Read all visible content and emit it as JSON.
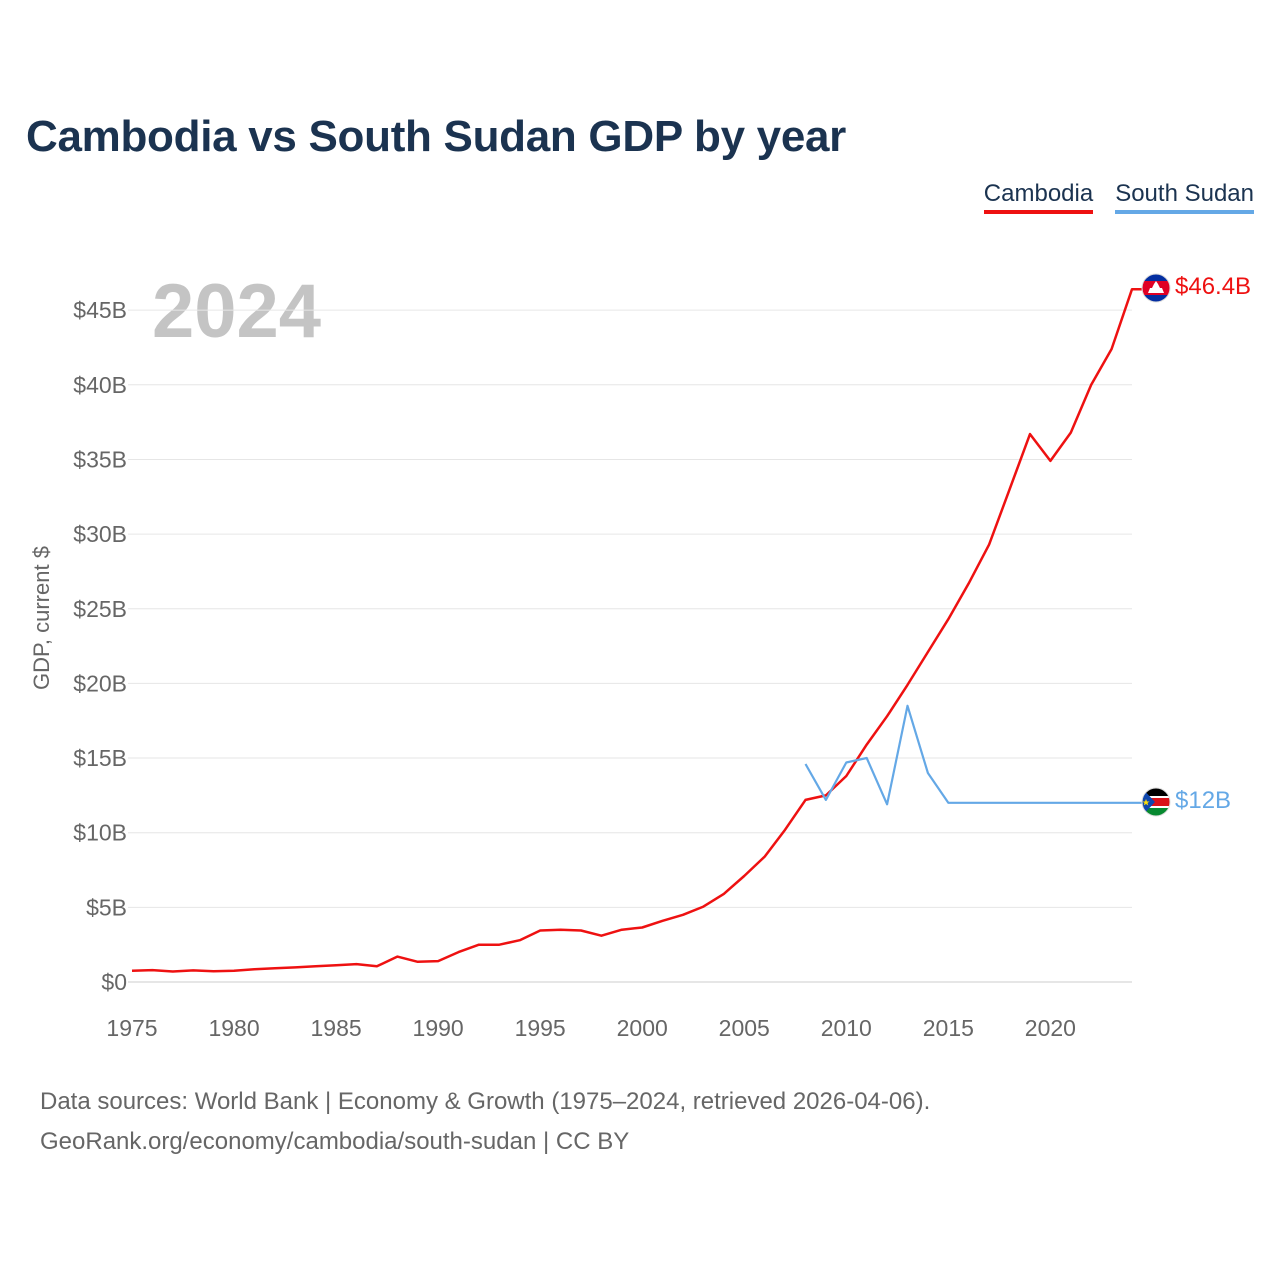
{
  "title": "Cambodia vs South Sudan GDP by year",
  "year_label": "2024",
  "footer": {
    "line1": "Data sources: World Bank | Economy & Growth (1975–2024, retrieved 2026-04-06).",
    "line2": "GeoRank.org/economy/cambodia/south-sudan | CC BY"
  },
  "chart_data": {
    "type": "line",
    "title": "Cambodia vs South Sudan GDP by year",
    "xlabel": "",
    "ylabel": "GDP, current $",
    "xlim": [
      1975,
      2024
    ],
    "ylim": [
      0,
      46.4
    ],
    "grid": true,
    "legend_position": "top-right",
    "y_ticks": [
      {
        "value": 0,
        "label": "$0"
      },
      {
        "value": 5,
        "label": "$5B"
      },
      {
        "value": 10,
        "label": "$10B"
      },
      {
        "value": 15,
        "label": "$15B"
      },
      {
        "value": 20,
        "label": "$20B"
      },
      {
        "value": 25,
        "label": "$25B"
      },
      {
        "value": 30,
        "label": "$30B"
      },
      {
        "value": 35,
        "label": "$35B"
      },
      {
        "value": 40,
        "label": "$40B"
      },
      {
        "value": 45,
        "label": "$45B"
      }
    ],
    "x_ticks": [
      1975,
      1980,
      1985,
      1990,
      1995,
      2000,
      2005,
      2010,
      2015,
      2020
    ],
    "series": [
      {
        "name": "Cambodia",
        "color": "#ee1111",
        "end_label": "$46.4B",
        "flag_icon": "cambodia-flag-icon",
        "x": [
          1975,
          1976,
          1977,
          1978,
          1979,
          1980,
          1981,
          1982,
          1983,
          1984,
          1985,
          1986,
          1987,
          1988,
          1989,
          1990,
          1991,
          1992,
          1993,
          1994,
          1995,
          1996,
          1997,
          1998,
          1999,
          2000,
          2001,
          2002,
          2003,
          2004,
          2005,
          2006,
          2007,
          2008,
          2009,
          2010,
          2011,
          2012,
          2013,
          2014,
          2015,
          2016,
          2017,
          2018,
          2019,
          2020,
          2021,
          2022,
          2023,
          2024
        ],
        "values": [
          0.75,
          0.8,
          0.7,
          0.78,
          0.72,
          0.75,
          0.85,
          0.92,
          0.98,
          1.05,
          1.12,
          1.2,
          1.05,
          1.7,
          1.35,
          1.4,
          2.0,
          2.5,
          2.5,
          2.8,
          3.45,
          3.5,
          3.45,
          3.1,
          3.5,
          3.65,
          4.1,
          4.5,
          5.05,
          5.9,
          7.1,
          8.4,
          10.2,
          12.2,
          12.5,
          13.8,
          15.9,
          17.8,
          19.9,
          22.1,
          24.3,
          26.7,
          29.3,
          33.0,
          36.7,
          34.9,
          36.8,
          40.0,
          42.4,
          46.4
        ]
      },
      {
        "name": "South Sudan",
        "color": "#64a8e6",
        "end_label": "$12B",
        "flag_icon": "south-sudan-flag-icon",
        "x": [
          2008,
          2009,
          2010,
          2011,
          2012,
          2013,
          2014,
          2015,
          2016,
          2017,
          2018,
          2019,
          2020,
          2021,
          2022,
          2023,
          2024
        ],
        "values": [
          14.6,
          12.2,
          14.7,
          15.0,
          11.9,
          18.5,
          14.0,
          12.0,
          12.0,
          12.0,
          12.0,
          12.0,
          12.0,
          12.0,
          12.0,
          12.0,
          12.0
        ]
      }
    ]
  }
}
